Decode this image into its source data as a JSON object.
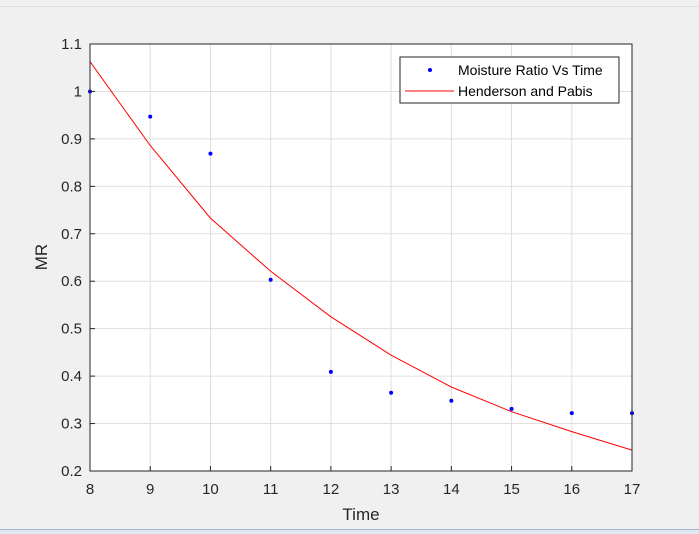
{
  "chart_data": {
    "type": "scatter",
    "xlabel": "Time",
    "ylabel": "MR",
    "xlim": [
      8,
      17
    ],
    "ylim": [
      0.2,
      1.1
    ],
    "xticks": [
      "8",
      "9",
      "10",
      "11",
      "12",
      "13",
      "14",
      "15",
      "16",
      "17"
    ],
    "yticks": [
      "0.2",
      "0.3",
      "0.4",
      "0.5",
      "0.6",
      "0.7",
      "0.8",
      "0.9",
      "1",
      "1.1"
    ],
    "grid": true,
    "legend_position": "top-right",
    "series": [
      {
        "name": "Moisture Ratio Vs Time",
        "kind": "markers",
        "color": "#0000ff",
        "x": [
          8,
          9,
          10,
          11,
          12,
          13,
          14,
          15,
          16,
          17
        ],
        "y": [
          1.0,
          0.947,
          0.869,
          0.603,
          0.409,
          0.365,
          0.348,
          0.331,
          0.322,
          0.322
        ]
      },
      {
        "name": "Henderson and Pabis",
        "kind": "line",
        "color": "#ff0000",
        "x": [
          8,
          9,
          10,
          11,
          12,
          13,
          14,
          15,
          16,
          17
        ],
        "y": [
          1.063,
          0.886,
          0.733,
          0.621,
          0.525,
          0.444,
          0.377,
          0.325,
          0.283,
          0.244
        ]
      }
    ]
  }
}
